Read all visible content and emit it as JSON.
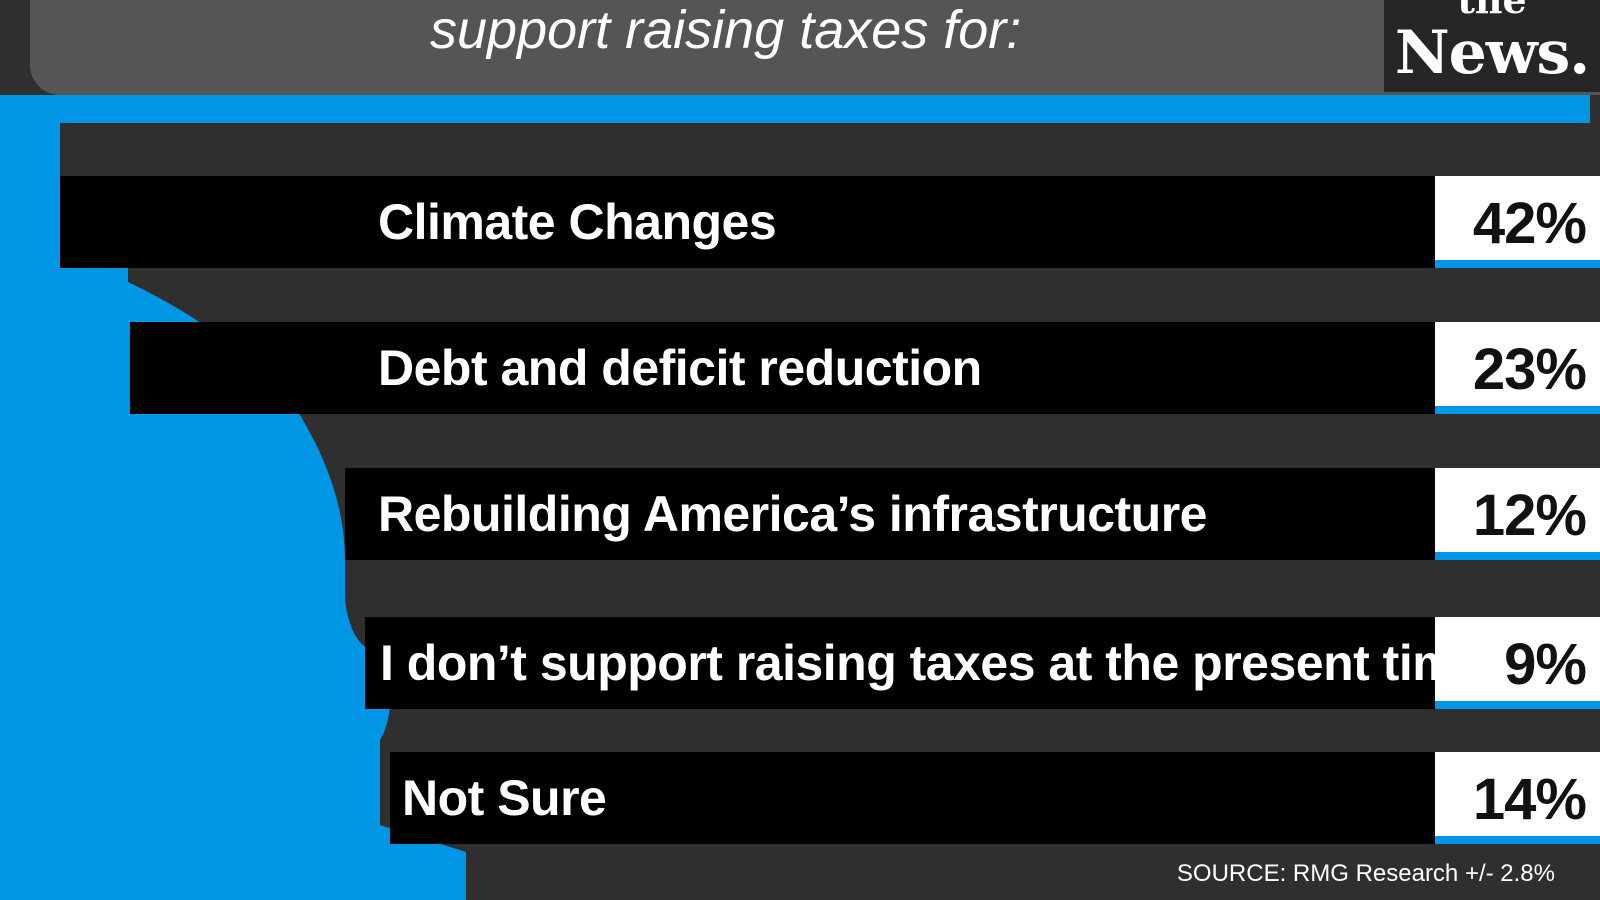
{
  "title": "support raising taxes for:",
  "logo": {
    "top_text": "the",
    "main_text": "News."
  },
  "source": "SOURCE: RMG Research +/- 2.8%",
  "colors": {
    "accent": "#0096e6",
    "bar": "#000000",
    "background": "#2f2f2f",
    "header": "#555555",
    "value_box": "#ffffff"
  },
  "chart_data": {
    "type": "bar",
    "categories": [
      "Climate Changes",
      "Debt and deficit reduction",
      "Rebuilding America’s infrastructure",
      "I don’t support raising taxes at the present time",
      "Not Sure"
    ],
    "values": [
      42,
      23,
      12,
      9,
      14
    ],
    "value_labels": [
      "42%",
      "23%",
      "12%",
      "9%",
      "14%"
    ],
    "unit": "%"
  }
}
